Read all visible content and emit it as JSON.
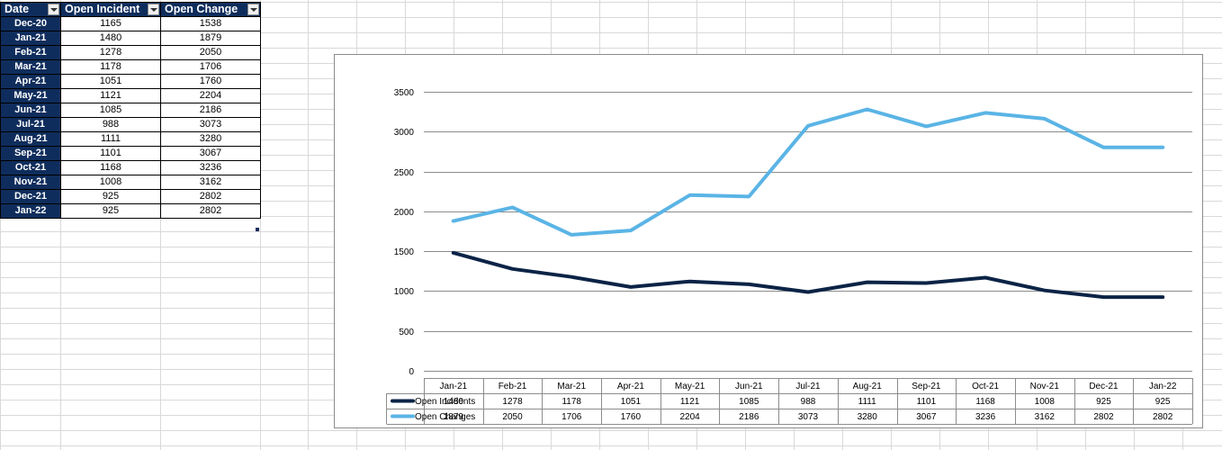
{
  "sheet": {
    "headers": [
      "Date",
      "Open Incident",
      "Open Change"
    ],
    "rows": [
      {
        "date": "Dec-20",
        "incident": "1165",
        "change": "1538"
      },
      {
        "date": "Jan-21",
        "incident": "1480",
        "change": "1879"
      },
      {
        "date": "Feb-21",
        "incident": "1278",
        "change": "2050"
      },
      {
        "date": "Mar-21",
        "incident": "1178",
        "change": "1706"
      },
      {
        "date": "Apr-21",
        "incident": "1051",
        "change": "1760"
      },
      {
        "date": "May-21",
        "incident": "1121",
        "change": "2204"
      },
      {
        "date": "Jun-21",
        "incident": "1085",
        "change": "2186"
      },
      {
        "date": "Jul-21",
        "incident": "988",
        "change": "3073"
      },
      {
        "date": "Aug-21",
        "incident": "1111",
        "change": "3280"
      },
      {
        "date": "Sep-21",
        "incident": "1101",
        "change": "3067"
      },
      {
        "date": "Oct-21",
        "incident": "1168",
        "change": "3236"
      },
      {
        "date": "Nov-21",
        "incident": "1008",
        "change": "3162"
      },
      {
        "date": "Dec-21",
        "incident": "925",
        "change": "2802"
      },
      {
        "date": "Jan-22",
        "incident": "925",
        "change": "2802"
      }
    ]
  },
  "colors": {
    "header_bg": "#0f2d5c",
    "series_incidents": "#0b2346",
    "series_changes": "#5ab4e5",
    "gridline": "#8c8c8c"
  },
  "chart_data": {
    "type": "line",
    "categories": [
      "Jan-21",
      "Feb-21",
      "Mar-21",
      "Apr-21",
      "May-21",
      "Jun-21",
      "Jul-21",
      "Aug-21",
      "Sep-21",
      "Oct-21",
      "Nov-21",
      "Dec-21",
      "Jan-22"
    ],
    "series": [
      {
        "name": "Open Incidents",
        "values": [
          1480,
          1278,
          1178,
          1051,
          1121,
          1085,
          988,
          1111,
          1101,
          1168,
          1008,
          925,
          925
        ]
      },
      {
        "name": "Open Changes",
        "values": [
          1879,
          2050,
          1706,
          1760,
          2204,
          2186,
          3073,
          3280,
          3067,
          3236,
          3162,
          2802,
          2802
        ]
      }
    ],
    "ylim": [
      0,
      3500
    ],
    "yticks": [
      0,
      500,
      1000,
      1500,
      2000,
      2500,
      3000,
      3500
    ],
    "grid": true,
    "legend": "data-table-below",
    "title": "",
    "xlabel": "",
    "ylabel": ""
  }
}
